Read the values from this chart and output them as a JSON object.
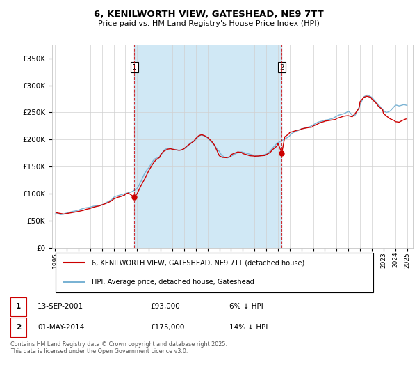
{
  "title_line1": "6, KENILWORTH VIEW, GATESHEAD, NE9 7TT",
  "title_line2": "Price paid vs. HM Land Registry's House Price Index (HPI)",
  "background_color": "#ffffff",
  "plot_bg_color": "#ffffff",
  "grid_color": "#d0d0d0",
  "hpi_color": "#7ab3d4",
  "hpi_fill_color": "#d0e8f5",
  "price_color": "#cc0000",
  "vline_color": "#cc0000",
  "ylim": [
    0,
    375000
  ],
  "yticks": [
    0,
    50000,
    100000,
    150000,
    200000,
    250000,
    300000,
    350000
  ],
  "ytick_labels": [
    "£0",
    "£50K",
    "£100K",
    "£150K",
    "£200K",
    "£250K",
    "£300K",
    "£350K"
  ],
  "purchase1_date": 2001.75,
  "purchase1_price": 93000,
  "purchase1_label": "1",
  "purchase2_date": 2014.33,
  "purchase2_price": 175000,
  "purchase2_label": "2",
  "legend_line1": "6, KENILWORTH VIEW, GATESHEAD, NE9 7TT (detached house)",
  "legend_line2": "HPI: Average price, detached house, Gateshead",
  "table_row1": [
    "1",
    "13-SEP-2001",
    "£93,000",
    "6% ↓ HPI"
  ],
  "table_row2": [
    "2",
    "01-MAY-2014",
    "£175,000",
    "14% ↓ HPI"
  ],
  "footnote": "Contains HM Land Registry data © Crown copyright and database right 2025.\nThis data is licensed under the Open Government Licence v3.0.",
  "hpi_data": {
    "years": [
      1995.0,
      1995.083,
      1995.167,
      1995.25,
      1995.333,
      1995.417,
      1995.5,
      1995.583,
      1995.667,
      1995.75,
      1995.833,
      1995.917,
      1996.0,
      1996.083,
      1996.167,
      1996.25,
      1996.333,
      1996.417,
      1996.5,
      1996.583,
      1996.667,
      1996.75,
      1996.833,
      1996.917,
      1997.0,
      1997.083,
      1997.167,
      1997.25,
      1997.333,
      1997.417,
      1997.5,
      1997.583,
      1997.667,
      1997.75,
      1997.833,
      1997.917,
      1998.0,
      1998.083,
      1998.167,
      1998.25,
      1998.333,
      1998.417,
      1998.5,
      1998.583,
      1998.667,
      1998.75,
      1998.833,
      1998.917,
      1999.0,
      1999.083,
      1999.167,
      1999.25,
      1999.333,
      1999.417,
      1999.5,
      1999.583,
      1999.667,
      1999.75,
      1999.833,
      1999.917,
      2000.0,
      2000.083,
      2000.167,
      2000.25,
      2000.333,
      2000.417,
      2000.5,
      2000.583,
      2000.667,
      2000.75,
      2000.833,
      2000.917,
      2001.0,
      2001.083,
      2001.167,
      2001.25,
      2001.333,
      2001.417,
      2001.5,
      2001.583,
      2001.667,
      2001.75,
      2001.833,
      2001.917,
      2002.0,
      2002.083,
      2002.167,
      2002.25,
      2002.333,
      2002.417,
      2002.5,
      2002.583,
      2002.667,
      2002.75,
      2002.833,
      2002.917,
      2003.0,
      2003.083,
      2003.167,
      2003.25,
      2003.333,
      2003.417,
      2003.5,
      2003.583,
      2003.667,
      2003.75,
      2003.833,
      2003.917,
      2004.0,
      2004.083,
      2004.167,
      2004.25,
      2004.333,
      2004.417,
      2004.5,
      2004.583,
      2004.667,
      2004.75,
      2004.833,
      2004.917,
      2005.0,
      2005.083,
      2005.167,
      2005.25,
      2005.333,
      2005.417,
      2005.5,
      2005.583,
      2005.667,
      2005.75,
      2005.833,
      2005.917,
      2006.0,
      2006.083,
      2006.167,
      2006.25,
      2006.333,
      2006.417,
      2006.5,
      2006.583,
      2006.667,
      2006.75,
      2006.833,
      2006.917,
      2007.0,
      2007.083,
      2007.167,
      2007.25,
      2007.333,
      2007.417,
      2007.5,
      2007.583,
      2007.667,
      2007.75,
      2007.833,
      2007.917,
      2008.0,
      2008.083,
      2008.167,
      2008.25,
      2008.333,
      2008.417,
      2008.5,
      2008.583,
      2008.667,
      2008.75,
      2008.833,
      2008.917,
      2009.0,
      2009.083,
      2009.167,
      2009.25,
      2009.333,
      2009.417,
      2009.5,
      2009.583,
      2009.667,
      2009.75,
      2009.833,
      2009.917,
      2010.0,
      2010.083,
      2010.167,
      2010.25,
      2010.333,
      2010.417,
      2010.5,
      2010.583,
      2010.667,
      2010.75,
      2010.833,
      2010.917,
      2011.0,
      2011.083,
      2011.167,
      2011.25,
      2011.333,
      2011.417,
      2011.5,
      2011.583,
      2011.667,
      2011.75,
      2011.833,
      2011.917,
      2012.0,
      2012.083,
      2012.167,
      2012.25,
      2012.333,
      2012.417,
      2012.5,
      2012.583,
      2012.667,
      2012.75,
      2012.833,
      2012.917,
      2013.0,
      2013.083,
      2013.167,
      2013.25,
      2013.333,
      2013.417,
      2013.5,
      2013.583,
      2013.667,
      2013.75,
      2013.833,
      2013.917,
      2014.0,
      2014.083,
      2014.167,
      2014.25,
      2014.333,
      2014.417,
      2014.5,
      2014.583,
      2014.667,
      2014.75,
      2014.833,
      2014.917,
      2015.0,
      2015.083,
      2015.167,
      2015.25,
      2015.333,
      2015.417,
      2015.5,
      2015.583,
      2015.667,
      2015.75,
      2015.833,
      2015.917,
      2016.0,
      2016.083,
      2016.167,
      2016.25,
      2016.333,
      2016.417,
      2016.5,
      2016.583,
      2016.667,
      2016.75,
      2016.833,
      2016.917,
      2017.0,
      2017.083,
      2017.167,
      2017.25,
      2017.333,
      2017.417,
      2017.5,
      2017.583,
      2017.667,
      2017.75,
      2017.833,
      2017.917,
      2018.0,
      2018.083,
      2018.167,
      2018.25,
      2018.333,
      2018.417,
      2018.5,
      2018.583,
      2018.667,
      2018.75,
      2018.833,
      2018.917,
      2019.0,
      2019.083,
      2019.167,
      2019.25,
      2019.333,
      2019.417,
      2019.5,
      2019.583,
      2019.667,
      2019.75,
      2019.833,
      2019.917,
      2020.0,
      2020.083,
      2020.167,
      2020.25,
      2020.333,
      2020.417,
      2020.5,
      2020.583,
      2020.667,
      2020.75,
      2020.833,
      2020.917,
      2021.0,
      2021.083,
      2021.167,
      2021.25,
      2021.333,
      2021.417,
      2021.5,
      2021.583,
      2021.667,
      2021.75,
      2021.833,
      2021.917,
      2022.0,
      2022.083,
      2022.167,
      2022.25,
      2022.333,
      2022.417,
      2022.5,
      2022.583,
      2022.667,
      2022.75,
      2022.833,
      2022.917,
      2023.0,
      2023.083,
      2023.167,
      2023.25,
      2023.333,
      2023.417,
      2023.5,
      2023.583,
      2023.667,
      2023.75,
      2023.833,
      2023.917,
      2024.0,
      2024.083,
      2024.167,
      2024.25,
      2024.333,
      2024.417,
      2024.5,
      2024.583,
      2024.667,
      2024.75,
      2024.833,
      2024.917,
      2025.0
    ],
    "values": [
      62000,
      62500,
      63000,
      62500,
      62000,
      61500,
      61000,
      61200,
      61500,
      62000,
      62800,
      63500,
      64000,
      64500,
      65000,
      65500,
      66000,
      66500,
      67000,
      67200,
      67500,
      68000,
      68500,
      69000,
      69500,
      70000,
      70800,
      71500,
      72000,
      72500,
      73000,
      73500,
      73800,
      74000,
      74200,
      74500,
      75000,
      75500,
      76000,
      76500,
      76800,
      77000,
      77200,
      77500,
      77800,
      78000,
      78500,
      79000,
      79500,
      80000,
      81000,
      82000,
      83000,
      84000,
      85000,
      86000,
      87000,
      88000,
      89000,
      91000,
      93000,
      94000,
      95000,
      95500,
      96000,
      96500,
      97000,
      97500,
      98000,
      98500,
      99000,
      99500,
      100000,
      100500,
      101000,
      101500,
      102000,
      102500,
      103000,
      104000,
      105000,
      106000,
      107000,
      108000,
      110000,
      113000,
      116000,
      120000,
      123000,
      127000,
      131000,
      135000,
      138000,
      141000,
      144000,
      146000,
      148000,
      151000,
      154000,
      157000,
      160000,
      162000,
      164000,
      165000,
      165500,
      166000,
      167000,
      168000,
      170000,
      173000,
      176000,
      179000,
      181000,
      182000,
      183000,
      183500,
      184000,
      184000,
      183500,
      183000,
      182500,
      182000,
      181500,
      181000,
      181000,
      180500,
      180000,
      180200,
      180500,
      180800,
      181000,
      182000,
      183000,
      184000,
      185000,
      187000,
      189000,
      191000,
      193000,
      194000,
      195000,
      196000,
      197000,
      198000,
      200000,
      202000,
      204000,
      206000,
      207000,
      208000,
      208000,
      207500,
      207000,
      206000,
      205000,
      204000,
      203000,
      201000,
      199000,
      197000,
      195000,
      193000,
      191000,
      189000,
      187000,
      184000,
      182000,
      180000,
      178000,
      175000,
      172000,
      170000,
      169000,
      168000,
      167000,
      166500,
      166000,
      166500,
      167000,
      168000,
      169000,
      170000,
      171000,
      172000,
      173000,
      174000,
      175000,
      175500,
      176000,
      176500,
      177000,
      177000,
      176500,
      176000,
      175500,
      175000,
      174500,
      174000,
      173500,
      173000,
      172500,
      172000,
      171500,
      171000,
      170500,
      170000,
      169500,
      169200,
      169000,
      169500,
      170000,
      170500,
      171000,
      171500,
      172000,
      172500,
      173000,
      174000,
      175000,
      177000,
      179000,
      181000,
      183000,
      185000,
      187000,
      189000,
      191000,
      193000,
      194000,
      195000,
      196000,
      197000,
      198000,
      199000,
      200000,
      201000,
      202000,
      203000,
      204000,
      205000,
      207000,
      209000,
      211000,
      212000,
      213000,
      214000,
      215000,
      215500,
      216000,
      217000,
      218000,
      219000,
      219500,
      220000,
      220500,
      221000,
      221500,
      222000,
      222500,
      223000,
      223500,
      224000,
      225000,
      226000,
      227000,
      228000,
      229000,
      230000,
      231000,
      232000,
      232500,
      233000,
      233500,
      234000,
      234500,
      235000,
      235500,
      236000,
      236200,
      236500,
      237000,
      237500,
      238000,
      238500,
      239000,
      240000,
      241000,
      242000,
      243000,
      244000,
      245000,
      245500,
      246000,
      246500,
      247000,
      247500,
      248000,
      249000,
      250000,
      251000,
      252000,
      251000,
      249000,
      247000,
      245000,
      244000,
      243000,
      245000,
      248000,
      252000,
      256000,
      260000,
      264000,
      268000,
      272000,
      276000,
      279000,
      280000,
      281000,
      282000,
      282000,
      281000,
      280000,
      279000,
      278000,
      276000,
      274000,
      272000,
      270000,
      268000,
      266000,
      264000,
      262000,
      260000,
      258000,
      256000,
      254000,
      252000,
      251000,
      250000,
      250500,
      251000,
      252000,
      253000,
      255000,
      257000,
      259000,
      261000,
      263000,
      263500,
      263000,
      262500,
      262000,
      262500,
      263000,
      263500,
      264000,
      264500,
      264000,
      263500,
      263000
    ]
  },
  "price_data": {
    "years": [
      1995.083,
      1995.25,
      1995.5,
      1995.75,
      1996.0,
      1996.25,
      1996.5,
      1996.75,
      1997.0,
      1997.417,
      1997.667,
      1997.917,
      1998.167,
      1998.5,
      1998.75,
      1999.0,
      1999.25,
      1999.583,
      1999.833,
      2000.0,
      2000.333,
      2000.667,
      2000.917,
      2001.0,
      2001.25,
      2001.583,
      2001.75,
      2002.0,
      2002.333,
      2002.667,
      2003.0,
      2003.333,
      2003.583,
      2003.917,
      2004.0,
      2004.25,
      2004.583,
      2004.833,
      2005.0,
      2005.25,
      2005.583,
      2005.75,
      2006.0,
      2006.25,
      2006.583,
      2006.833,
      2007.0,
      2007.25,
      2007.5,
      2007.75,
      2008.0,
      2008.333,
      2008.583,
      2009.0,
      2009.25,
      2009.583,
      2009.917,
      2010.0,
      2010.333,
      2010.583,
      2010.917,
      2011.0,
      2011.333,
      2011.583,
      2011.917,
      2012.0,
      2012.333,
      2012.583,
      2012.917,
      2013.0,
      2013.333,
      2013.583,
      2013.917,
      2014.0,
      2014.333,
      2014.583,
      2014.917,
      2015.0,
      2015.333,
      2015.583,
      2015.917,
      2016.0,
      2016.333,
      2016.583,
      2016.917,
      2017.0,
      2017.333,
      2017.583,
      2017.917,
      2018.0,
      2018.333,
      2018.583,
      2018.917,
      2019.0,
      2019.333,
      2019.583,
      2019.917,
      2020.0,
      2020.333,
      2020.583,
      2020.917,
      2021.0,
      2021.333,
      2021.583,
      2021.917,
      2022.0,
      2022.333,
      2022.583,
      2022.917,
      2023.0,
      2023.333,
      2023.583,
      2023.917,
      2024.0,
      2024.333,
      2024.583,
      2024.917
    ],
    "values": [
      65000,
      64000,
      63000,
      62000,
      63000,
      64000,
      65000,
      66000,
      67000,
      69000,
      71000,
      72000,
      74000,
      76000,
      77000,
      79000,
      81000,
      84000,
      87000,
      90000,
      93000,
      95000,
      97000,
      99000,
      101000,
      96000,
      93000,
      100000,
      115000,
      128000,
      143000,
      155000,
      162000,
      167000,
      172000,
      178000,
      182000,
      183000,
      182000,
      181000,
      180000,
      180500,
      183000,
      188000,
      193000,
      197000,
      202000,
      207000,
      209000,
      207000,
      204000,
      197000,
      190000,
      170000,
      167000,
      166500,
      168000,
      172000,
      175000,
      177000,
      176000,
      174000,
      172000,
      170000,
      169500,
      169000,
      169500,
      170000,
      170500,
      172000,
      176000,
      182000,
      188000,
      193000,
      175000,
      205000,
      210000,
      213000,
      215000,
      217000,
      218000,
      219500,
      221000,
      222000,
      223000,
      225000,
      228000,
      231000,
      233000,
      234000,
      235000,
      236000,
      237000,
      239000,
      241000,
      243000,
      244000,
      244000,
      242000,
      248000,
      258000,
      270000,
      278000,
      280000,
      278000,
      275000,
      268000,
      261000,
      255000,
      248000,
      242000,
      238000,
      235000,
      233000,
      232000,
      235000,
      238000
    ]
  },
  "xlim": [
    1994.75,
    2025.5
  ],
  "xticks": [
    1995,
    1996,
    1997,
    1998,
    1999,
    2000,
    2001,
    2002,
    2003,
    2004,
    2005,
    2006,
    2007,
    2008,
    2009,
    2010,
    2011,
    2012,
    2013,
    2014,
    2015,
    2016,
    2017,
    2018,
    2019,
    2020,
    2021,
    2022,
    2023,
    2024,
    2025
  ]
}
